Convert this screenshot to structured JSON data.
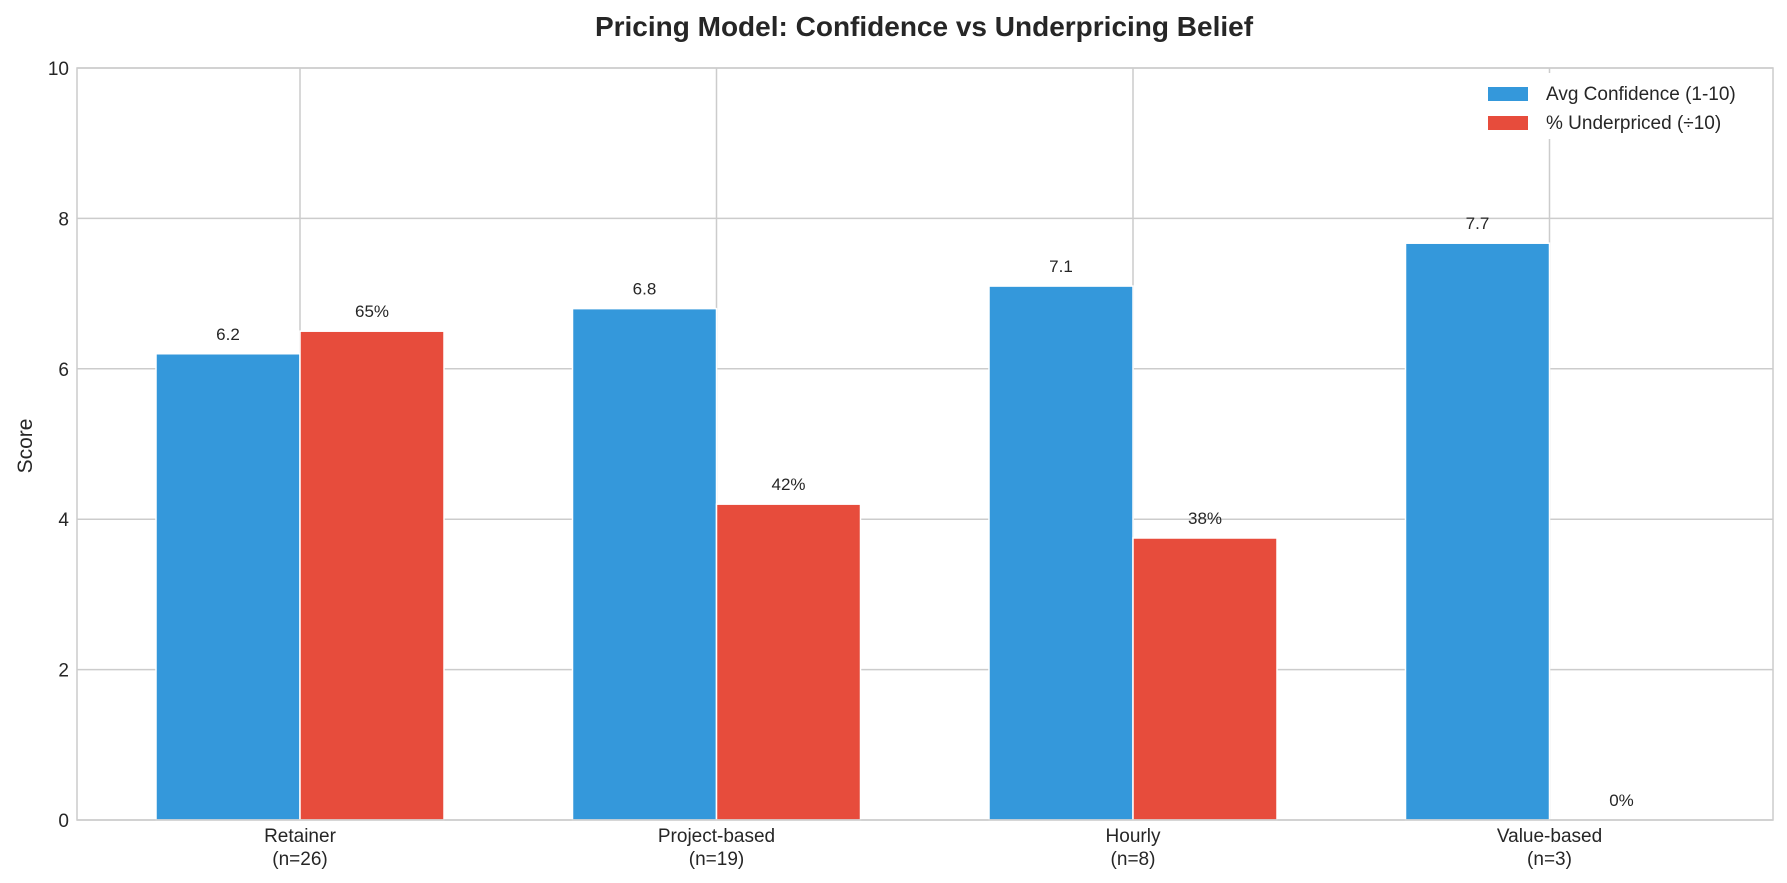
{
  "chart_data": {
    "type": "bar",
    "title": "Pricing Model: Confidence vs Underpricing Belief",
    "xlabel": "",
    "ylabel": "Score",
    "ylim": [
      0,
      10
    ],
    "yticks": [
      "0",
      "2",
      "4",
      "6",
      "8",
      "10"
    ],
    "categories": [
      "Retainer\n(n=26)",
      "Project-based\n(n=19)",
      "Hourly\n(n=8)",
      "Value-based\n(n=3)"
    ],
    "series": [
      {
        "name": "Avg Confidence (1-10)",
        "color": "#3498db",
        "values": [
          6.2,
          6.8,
          7.1,
          7.67
        ],
        "labels": [
          "6.2",
          "6.8",
          "7.1",
          "7.7"
        ]
      },
      {
        "name": "% Underpriced (÷10)",
        "color": "#e74c3c",
        "values": [
          6.5,
          4.2,
          3.75,
          0
        ],
        "labels": [
          "65%",
          "42%",
          "38%",
          "0%"
        ]
      }
    ],
    "grid": true,
    "legend_position": "top-right",
    "colors": {
      "grid": "#cccccc",
      "text": "#262626",
      "background": "#ffffff"
    }
  }
}
